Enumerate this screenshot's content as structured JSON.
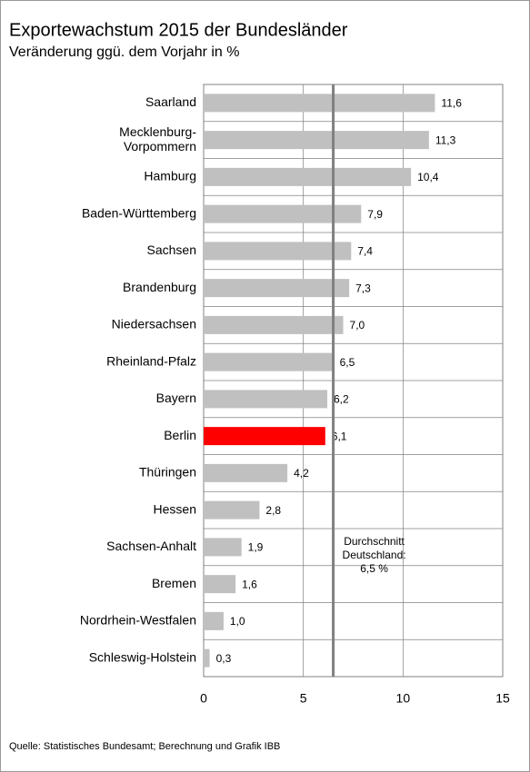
{
  "chart_data": {
    "type": "hbar",
    "title": "Exportewachstum 2015 der Bundesländer",
    "subtitle": "Veränderung ggü. dem Vorjahr in %",
    "categories": [
      "Saarland",
      "Mecklenburg-\nVorpommern",
      "Hamburg",
      "Baden-Württemberg",
      "Sachsen",
      "Brandenburg",
      "Niedersachsen",
      "Rheinland-Pfalz",
      "Bayern",
      "Berlin",
      "Thüringen",
      "Hessen",
      "Sachsen-Anhalt",
      "Bremen",
      "Nordrhein-Westfalen",
      "Schleswig-Holstein"
    ],
    "values": [
      11.6,
      11.3,
      10.4,
      7.9,
      7.4,
      7.3,
      7.0,
      6.5,
      6.2,
      6.1,
      4.2,
      2.8,
      1.9,
      1.6,
      1.0,
      0.3
    ],
    "value_labels": [
      "11,6",
      "11,3",
      "10,4",
      "7,9",
      "7,4",
      "7,3",
      "7,0",
      "6,5",
      "6,2",
      "6,1",
      "4,2",
      "2,8",
      "1,9",
      "1,6",
      "1,0",
      "0,3"
    ],
    "colors": [
      "#c0c0c0",
      "#c0c0c0",
      "#c0c0c0",
      "#c0c0c0",
      "#c0c0c0",
      "#c0c0c0",
      "#c0c0c0",
      "#c0c0c0",
      "#c0c0c0",
      "#ff0000",
      "#c0c0c0",
      "#c0c0c0",
      "#c0c0c0",
      "#c0c0c0",
      "#c0c0c0",
      "#c0c0c0"
    ],
    "xlim": [
      0,
      15
    ],
    "xticks": [
      0,
      5,
      10,
      15
    ],
    "grid": true,
    "average": 6.5,
    "annotation": "Durchschnitt\nDeutschland:\n6,5 %",
    "source": "Quelle: Statistisches Bundesamt; Berechnung und Grafik IBB"
  }
}
